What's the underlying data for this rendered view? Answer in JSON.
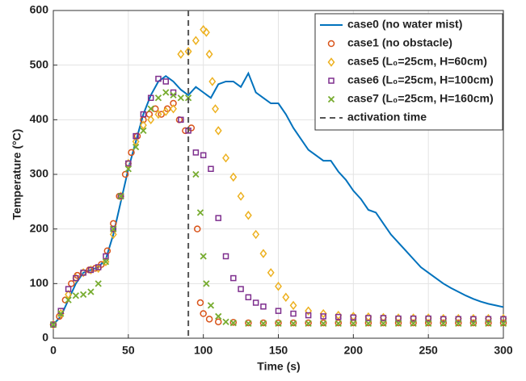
{
  "chart_data": {
    "type": "line",
    "xlabel": "Time (s)",
    "ylabel": "Temperature (°C)",
    "xlim": [
      0,
      300
    ],
    "xticks": [
      0,
      50,
      100,
      150,
      200,
      250,
      300
    ],
    "ylim": [
      0,
      600
    ],
    "yticks": [
      0,
      100,
      200,
      300,
      400,
      500,
      600
    ],
    "grid": true,
    "legend": "upper right",
    "series": [
      {
        "name": "case0 (no water mist)",
        "color": "#0072bd",
        "style": "line",
        "x": [
          0,
          5,
          10,
          15,
          20,
          25,
          30,
          35,
          40,
          45,
          50,
          55,
          60,
          65,
          70,
          75,
          80,
          85,
          90,
          95,
          100,
          105,
          110,
          115,
          120,
          125,
          130,
          135,
          140,
          145,
          150,
          155,
          160,
          165,
          170,
          175,
          180,
          185,
          190,
          195,
          200,
          205,
          210,
          215,
          220,
          225,
          230,
          235,
          240,
          245,
          250,
          255,
          260,
          265,
          270,
          275,
          280,
          285,
          290,
          295,
          300
        ],
        "values": [
          25,
          40,
          70,
          100,
          120,
          125,
          130,
          145,
          190,
          250,
          310,
          360,
          410,
          445,
          470,
          480,
          470,
          455,
          445,
          460,
          450,
          440,
          465,
          470,
          470,
          460,
          485,
          450,
          440,
          430,
          430,
          410,
          385,
          365,
          345,
          335,
          325,
          325,
          305,
          290,
          270,
          255,
          235,
          230,
          210,
          190,
          175,
          160,
          145,
          130,
          120,
          110,
          100,
          92,
          85,
          78,
          72,
          67,
          63,
          60,
          57
        ]
      },
      {
        "name": "case1 (no obstacle)",
        "color": "#d95319",
        "style": "o",
        "x": [
          0,
          4,
          8,
          12,
          16,
          20,
          24,
          28,
          32,
          36,
          40,
          44,
          48,
          52,
          56,
          60,
          64,
          68,
          72,
          76,
          80,
          84,
          88,
          92,
          96,
          98,
          100,
          104,
          110,
          120,
          130,
          140,
          150,
          160,
          170,
          180,
          190,
          200,
          210,
          220,
          230,
          240,
          250,
          260,
          270,
          280,
          290,
          300
        ],
        "values": [
          25,
          40,
          70,
          100,
          115,
          120,
          125,
          128,
          135,
          160,
          210,
          260,
          300,
          340,
          370,
          400,
          410,
          420,
          410,
          420,
          430,
          400,
          380,
          385,
          200,
          65,
          45,
          35,
          30,
          29,
          28,
          28,
          28,
          28,
          28,
          28,
          28,
          28,
          28,
          28,
          28,
          28,
          28,
          28,
          28,
          28,
          28,
          28
        ]
      },
      {
        "name": "case5 (L₀=25cm, H=60cm)",
        "color": "#edb120",
        "style": "d",
        "x": [
          0,
          5,
          10,
          15,
          20,
          25,
          30,
          35,
          40,
          45,
          50,
          55,
          60,
          65,
          70,
          75,
          80,
          85,
          90,
          95,
          100,
          102,
          104,
          106,
          108,
          110,
          115,
          120,
          125,
          130,
          135,
          140,
          145,
          150,
          155,
          160,
          170,
          180,
          190,
          200,
          210,
          220,
          230,
          240,
          250,
          260,
          270,
          280,
          290,
          300
        ],
        "values": [
          25,
          45,
          80,
          110,
          120,
          125,
          128,
          140,
          190,
          260,
          320,
          360,
          390,
          400,
          410,
          415,
          420,
          520,
          525,
          545,
          565,
          560,
          520,
          470,
          420,
          380,
          330,
          295,
          260,
          225,
          190,
          155,
          120,
          95,
          75,
          60,
          50,
          45,
          42,
          40,
          39,
          38,
          37,
          37,
          37,
          36,
          36,
          36,
          36,
          36
        ]
      },
      {
        "name": "case6 (L₀=25cm, H=100cm)",
        "color": "#7e2f8e",
        "style": "s",
        "x": [
          0,
          5,
          10,
          15,
          20,
          25,
          30,
          35,
          40,
          45,
          50,
          55,
          60,
          65,
          70,
          75,
          80,
          85,
          90,
          95,
          100,
          105,
          110,
          115,
          120,
          125,
          130,
          135,
          140,
          150,
          160,
          170,
          180,
          190,
          200,
          210,
          220,
          230,
          240,
          250,
          260,
          270,
          280,
          290,
          300
        ],
        "values": [
          25,
          50,
          90,
          110,
          120,
          125,
          130,
          150,
          200,
          260,
          320,
          370,
          410,
          440,
          475,
          470,
          450,
          400,
          380,
          340,
          335,
          310,
          220,
          150,
          110,
          90,
          75,
          65,
          58,
          50,
          45,
          42,
          40,
          39,
          38,
          37,
          37,
          36,
          36,
          36,
          35,
          35,
          35,
          35,
          35
        ]
      },
      {
        "name": "case7 (L₀=25cm, H=160cm)",
        "color": "#77ac30",
        "style": "x",
        "x": [
          0,
          5,
          10,
          15,
          20,
          25,
          30,
          35,
          40,
          45,
          50,
          55,
          60,
          65,
          70,
          75,
          80,
          85,
          90,
          95,
          98,
          100,
          102,
          105,
          110,
          115,
          120,
          130,
          140,
          150,
          160,
          170,
          180,
          190,
          200,
          210,
          220,
          230,
          240,
          250,
          260,
          270,
          280,
          290,
          300
        ],
        "values": [
          25,
          45,
          70,
          78,
          80,
          85,
          100,
          140,
          200,
          260,
          310,
          350,
          380,
          420,
          440,
          450,
          445,
          440,
          440,
          300,
          230,
          150,
          100,
          60,
          40,
          30,
          28,
          27,
          27,
          27,
          27,
          27,
          27,
          27,
          27,
          27,
          27,
          27,
          27,
          27,
          27,
          27,
          27,
          27,
          27
        ]
      },
      {
        "name": "activation time",
        "color": "#555555",
        "style": "vline",
        "x": [
          90
        ]
      }
    ]
  }
}
